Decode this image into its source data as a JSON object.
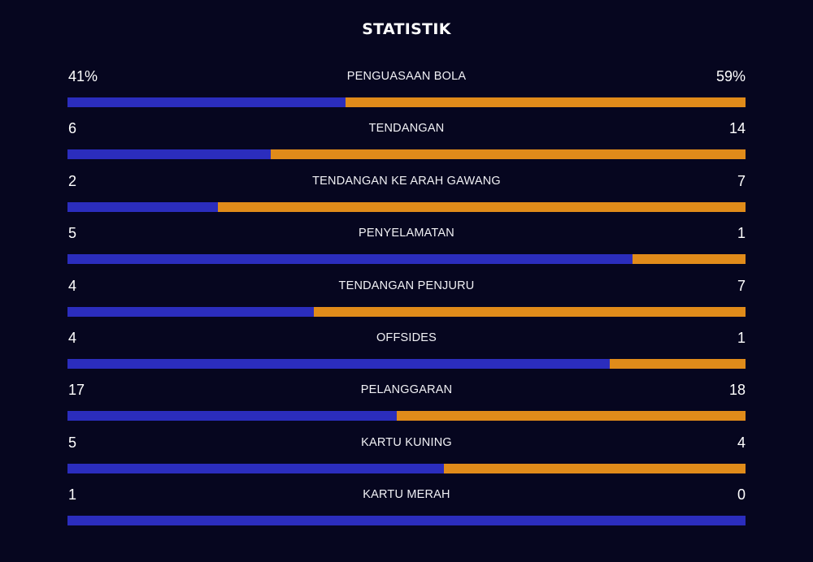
{
  "title": "STATISTIK",
  "colors": {
    "background": "#06061f",
    "home": "#2b2dbd",
    "away": "#e08b1a"
  },
  "stats": [
    {
      "label": "PENGUASAAN BOLA",
      "home": "41%",
      "away": "59%",
      "home_value": 41,
      "away_value": 59
    },
    {
      "label": "TENDANGAN",
      "home": "6",
      "away": "14",
      "home_value": 6,
      "away_value": 14
    },
    {
      "label": "TENDANGAN KE ARAH GAWANG",
      "home": "2",
      "away": "7",
      "home_value": 2,
      "away_value": 7
    },
    {
      "label": "PENYELAMATAN",
      "home": "5",
      "away": "1",
      "home_value": 5,
      "away_value": 1
    },
    {
      "label": "TENDANGAN PENJURU",
      "home": "4",
      "away": "7",
      "home_value": 4,
      "away_value": 7
    },
    {
      "label": "OFFSIDES",
      "home": "4",
      "away": "1",
      "home_value": 4,
      "away_value": 1
    },
    {
      "label": "PELANGGARAN",
      "home": "17",
      "away": "18",
      "home_value": 17,
      "away_value": 18
    },
    {
      "label": "KARTU KUNING",
      "home": "5",
      "away": "4",
      "home_value": 5,
      "away_value": 4
    },
    {
      "label": "KARTU MERAH",
      "home": "1",
      "away": "0",
      "home_value": 1,
      "away_value": 0
    }
  ]
}
